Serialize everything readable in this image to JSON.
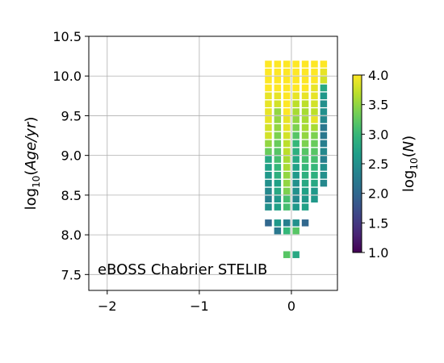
{
  "chart_data": {
    "type": "heatmap",
    "xlabel": "",
    "ylabel": "log10(Age/yr)",
    "xlim": [
      -2.2,
      0.5
    ],
    "ylim": [
      7.3,
      10.5
    ],
    "xticks": [
      -2,
      -1,
      0
    ],
    "yticks": [
      7.5,
      8.0,
      8.5,
      9.0,
      9.5,
      10.0,
      10.5
    ],
    "grid": true,
    "annotation": "eBOSS Chabrier STELIB",
    "colorbar": {
      "label": "log10(N)",
      "range": [
        1.0,
        4.0
      ],
      "ticks": [
        1.0,
        1.5,
        2.0,
        2.5,
        3.0,
        3.5,
        4.0
      ],
      "colormap": "viridis"
    },
    "metallicity_columns": [
      -0.25,
      -0.15,
      -0.05,
      0.05,
      0.15,
      0.25,
      0.35
    ],
    "age_rows": [
      7.75,
      8.05,
      8.15,
      8.25,
      8.35,
      8.45,
      8.55,
      8.65,
      8.75,
      8.85,
      8.95,
      9.05,
      9.15,
      9.25,
      9.35,
      9.45,
      9.55,
      9.65,
      9.75,
      9.85,
      9.95,
      10.05,
      10.15
    ],
    "values": [
      [
        null,
        null,
        3.2,
        2.8,
        null,
        null,
        null
      ],
      [
        null,
        2.2,
        3.0,
        3.2,
        null,
        null,
        null
      ],
      [
        2.0,
        2.6,
        2.3,
        2.5,
        2.0,
        null,
        null
      ],
      [
        null,
        null,
        null,
        null,
        null,
        null,
        null
      ],
      [
        2.5,
        2.7,
        3.1,
        2.6,
        2.7,
        null,
        null
      ],
      [
        2.3,
        2.6,
        3.1,
        2.4,
        2.6,
        2.6,
        null
      ],
      [
        2.4,
        2.8,
        3.4,
        2.5,
        2.7,
        2.6,
        null
      ],
      [
        2.5,
        2.7,
        3.5,
        2.5,
        2.8,
        2.8,
        2.4
      ],
      [
        2.6,
        2.9,
        3.5,
        2.6,
        2.9,
        2.9,
        2.5
      ],
      [
        2.7,
        3.0,
        3.6,
        2.7,
        3.0,
        3.0,
        2.5
      ],
      [
        2.8,
        3.1,
        3.6,
        2.8,
        3.1,
        3.1,
        2.3
      ],
      [
        3.3,
        3.2,
        3.7,
        2.9,
        3.2,
        3.2,
        2.4
      ],
      [
        3.5,
        3.3,
        3.7,
        3.0,
        3.4,
        3.3,
        2.3
      ],
      [
        3.8,
        3.4,
        3.8,
        3.2,
        3.5,
        3.4,
        2.2
      ],
      [
        3.8,
        3.5,
        3.9,
        3.4,
        3.6,
        3.6,
        2.2
      ],
      [
        3.9,
        3.5,
        3.9,
        3.5,
        3.6,
        3.9,
        2.4
      ],
      [
        3.9,
        3.5,
        4.0,
        3.6,
        3.6,
        3.7,
        2.5
      ],
      [
        3.9,
        3.8,
        4.0,
        3.7,
        3.7,
        3.8,
        2.5
      ],
      [
        3.9,
        3.9,
        4.0,
        3.9,
        3.9,
        3.9,
        2.6
      ],
      [
        4.0,
        4.0,
        4.0,
        4.0,
        4.0,
        3.9,
        2.8
      ],
      [
        4.0,
        4.0,
        4.0,
        4.0,
        4.0,
        4.0,
        3.8
      ],
      [
        4.0,
        4.0,
        4.0,
        4.0,
        4.0,
        4.0,
        3.9
      ],
      [
        4.0,
        4.0,
        4.0,
        4.0,
        4.0,
        4.0,
        4.0
      ]
    ]
  }
}
